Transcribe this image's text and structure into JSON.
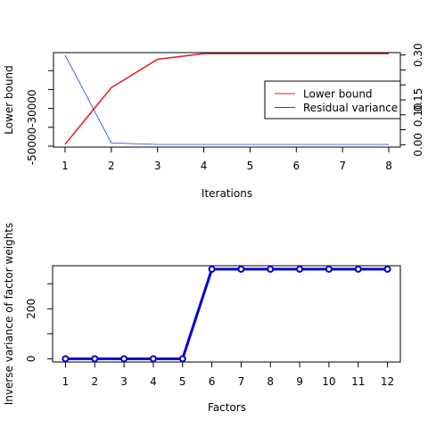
{
  "chart_data": [
    {
      "type": "line",
      "title": "",
      "xlabel": "Iterations",
      "ylabel": "Lower bound",
      "y2label": "",
      "x": [
        1,
        2,
        3,
        4,
        5,
        6,
        7,
        8
      ],
      "xticks": [
        1,
        2,
        3,
        4,
        5,
        6,
        7,
        8
      ],
      "xlim": [
        0.75,
        8.25
      ],
      "ylim": [
        -50500,
        -450
      ],
      "y2lim": [
        -0.008,
        0.308
      ],
      "yticks": [
        -50000,
        -40000,
        -30000,
        -20000,
        -10000
      ],
      "ytick_labels": [
        "-50000",
        "",
        "-30000",
        "",
        ""
      ],
      "y2ticks": [
        0.0,
        0.05,
        0.1,
        0.15,
        0.2,
        0.25,
        0.3
      ],
      "y2tick_labels": [
        "0.00",
        "",
        "0.10",
        "0.15",
        "",
        "",
        "0.30"
      ],
      "series": [
        {
          "name": "Lower bound",
          "axis": "left",
          "color": "#e31a1c",
          "values": [
            -49000,
            -19000,
            -4000,
            -1000,
            -1000,
            -1000,
            -1000,
            -1000
          ]
        },
        {
          "name": "Residual variance",
          "axis": "right",
          "color": "#1f3ee0",
          "values": [
            0.3,
            0.006,
            0.001,
            0.001,
            0.001,
            0.001,
            0.001,
            0.001
          ]
        }
      ],
      "legend": "right"
    },
    {
      "type": "line",
      "title": "",
      "xlabel": "Factors",
      "ylabel": "Inverse variance of factor weights",
      "x": [
        1,
        2,
        3,
        4,
        5,
        6,
        7,
        8,
        9,
        10,
        11,
        12
      ],
      "xticks": [
        1,
        2,
        3,
        4,
        5,
        6,
        7,
        8,
        9,
        10,
        11,
        12
      ],
      "xlim": [
        0.56,
        12.44
      ],
      "ylim": [
        -13,
        372
      ],
      "yticks": [
        0,
        100,
        200,
        300
      ],
      "ytick_labels": [
        "0",
        "",
        "200",
        ""
      ],
      "series": [
        {
          "name": "",
          "color": "#0000cd",
          "markers": true,
          "values": [
            0,
            0,
            0,
            0,
            0,
            358,
            358,
            358,
            358,
            358,
            358,
            358
          ]
        }
      ]
    }
  ]
}
